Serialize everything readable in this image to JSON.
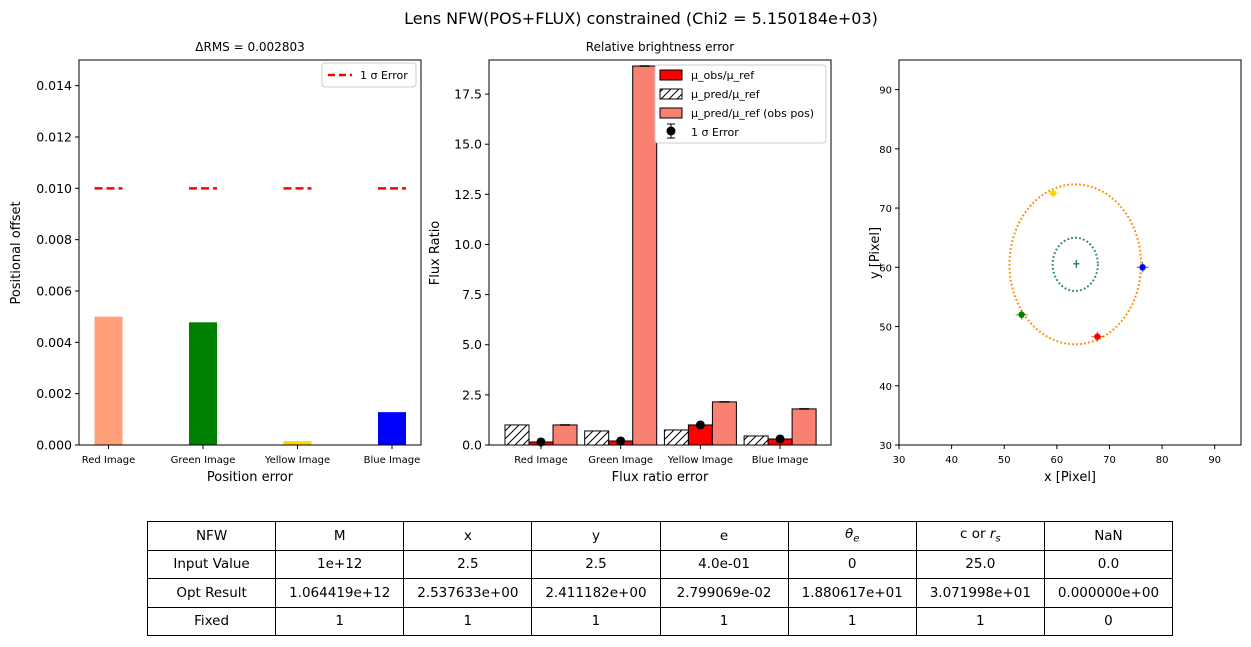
{
  "figure": {
    "suptitle": "Lens NFW(POS+FLUX) constrained (Chi2 = 5.150184e+03)"
  },
  "colors": {
    "red_image": "#ffa07a",
    "green_image": "#008000",
    "yellow_image": "#ffd700",
    "blue_image": "#0000ff",
    "sigma_line": "#ff0000",
    "mu_obs": "#ff0000",
    "mu_pred_obs_pos": "#fa8072",
    "critical_curve": "#ff8c00",
    "caustic": "#2e8b57"
  },
  "chart_data": [
    {
      "type": "bar",
      "title": "ΔRMS = 0.002803",
      "xlabel": "Position error",
      "ylabel": "Positional offset",
      "categories": [
        "Red Image",
        "Green Image",
        "Yellow Image",
        "Blue Image"
      ],
      "values": [
        0.005,
        0.00478,
        0.00015,
        0.00128
      ],
      "bar_colors": [
        "#ffa07a",
        "#008000",
        "#ffd700",
        "#0000ff"
      ],
      "ylim": [
        0,
        0.015
      ],
      "yticks": [
        "0.000",
        "0.002",
        "0.004",
        "0.006",
        "0.008",
        "0.010",
        "0.012",
        "0.014"
      ],
      "sigma_line": {
        "label": "1 σ Error",
        "value": 0.01
      },
      "legend": "top-right"
    },
    {
      "type": "bar",
      "title": "Relative brightness error",
      "xlabel": "Flux ratio error",
      "ylabel": "Flux Ratio",
      "categories": [
        "Red Image",
        "Green Image",
        "Yellow Image",
        "Blue Image"
      ],
      "series": [
        {
          "name": "μ_pred/μ_ref",
          "values": [
            1.0,
            0.7,
            0.75,
            0.45
          ],
          "hatch": true
        },
        {
          "name": "μ_obs/μ_ref",
          "values": [
            0.15,
            0.2,
            1.0,
            0.3
          ]
        },
        {
          "name": "μ_pred/μ_ref (obs pos)",
          "values": [
            1.0,
            18.9,
            2.15,
            1.8
          ]
        }
      ],
      "errorbars": {
        "label": "1 σ Error",
        "values": [
          0.15,
          0.2,
          1.0,
          0.3
        ]
      },
      "ylim": [
        0,
        19.2
      ],
      "yticks": [
        "0.0",
        "2.5",
        "5.0",
        "7.5",
        "10.0",
        "12.5",
        "15.0",
        "17.5"
      ],
      "legend": "top-right"
    },
    {
      "type": "scatter",
      "xlabel": "x [Pixel]",
      "ylabel": "y [Pixel]",
      "xlim": [
        30,
        95
      ],
      "ylim": [
        30,
        95
      ],
      "xticks": [
        "30",
        "40",
        "50",
        "60",
        "70",
        "80",
        "90"
      ],
      "yticks": [
        "30",
        "40",
        "50",
        "60",
        "70",
        "80",
        "90"
      ],
      "critical_curve": {
        "center": [
          63.5,
          60.5
        ],
        "radius_x": 12.5,
        "radius_y": 13.5
      },
      "caustic": {
        "center": [
          63.5,
          60.5
        ],
        "radius_x": 4.3,
        "radius_y": 4.5
      },
      "source": [
        63.7,
        60.6
      ],
      "points": [
        {
          "name": "Red Image",
          "x": 67.7,
          "y": 48.3,
          "color": "#ff0000"
        },
        {
          "name": "Green Image",
          "x": 53.3,
          "y": 52.0,
          "color": "#008000"
        },
        {
          "name": "Yellow Image",
          "x": 59.3,
          "y": 72.5,
          "color": "#ffd700"
        },
        {
          "name": "Blue Image",
          "x": 76.3,
          "y": 60.0,
          "color": "#0000ff"
        }
      ]
    }
  ],
  "table": {
    "header": [
      "NFW",
      "M",
      "x",
      "y",
      "e",
      "θe",
      "c or rs",
      "NaN"
    ],
    "rows": [
      [
        "Input Value",
        "1e+12",
        "2.5",
        "2.5",
        "4.0e-01",
        "0",
        "25.0",
        "0.0"
      ],
      [
        "Opt Result",
        "1.064419e+12",
        "2.537633e+00",
        "2.411182e+00",
        "2.799069e-02",
        "1.880617e+01",
        "3.071998e+01",
        "0.000000e+00"
      ],
      [
        "Fixed",
        "1",
        "1",
        "1",
        "1",
        "1",
        "1",
        "0"
      ]
    ]
  }
}
